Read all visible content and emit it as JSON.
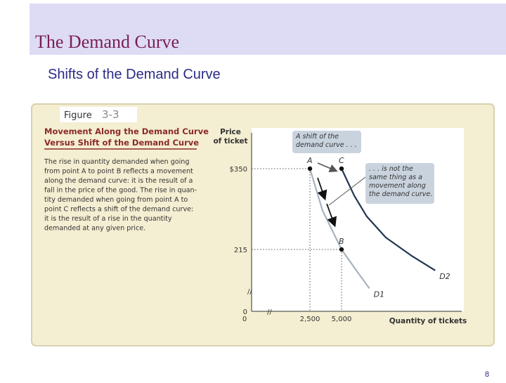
{
  "slide": {
    "title": "The Demand Curve",
    "subtitle": "Shifts of the Demand Curve",
    "page_number": "8"
  },
  "figure": {
    "tab": {
      "word": "Figure",
      "number": "3-3"
    },
    "heading": [
      "Movement Along the Demand Curve",
      "Versus Shift of the Demand Curve"
    ],
    "caption": [
      "The rise in quantity demanded when going",
      "from point A to point B reflects a movement",
      "along the demand curve: it is the result of a",
      "fall in the price of the good. The rise in quan-",
      "tity demanded when going from point A to",
      "point C reflects a shift of the demand curve:",
      "it is the result of a rise in the quantity",
      "demanded at any given price."
    ]
  },
  "chart_data": {
    "type": "line",
    "y_label": [
      "Price",
      "of ticket"
    ],
    "x_label": "Quantity of tickets",
    "xlim": [
      0,
      14500
    ],
    "ylim": [
      0,
      410
    ],
    "xticks": [
      0,
      {
        "value": 2500,
        "label": "2,500"
      },
      {
        "value": 5000,
        "label": "5,000"
      }
    ],
    "yticks": [
      0,
      215,
      {
        "value": 350,
        "label": "$350"
      }
    ],
    "series": [
      {
        "name": "D1",
        "color": "#a9b3bf",
        "x": [
          2500,
          3500,
          5000,
          6000,
          7200
        ],
        "values": [
          350,
          280,
          215,
          185,
          150
        ]
      },
      {
        "name": "D2",
        "color": "#1f3550",
        "x": [
          5000,
          6000,
          7000,
          8500,
          10500,
          12400
        ],
        "values": [
          350,
          305,
          270,
          235,
          205,
          180
        ]
      }
    ],
    "points": [
      {
        "label": "A",
        "x": 2500,
        "y": 350
      },
      {
        "label": "C",
        "x": 5000,
        "y": 350
      },
      {
        "label": "B",
        "x": 5000,
        "y": 215
      }
    ],
    "annotations": [
      [
        "A shift of the",
        "demand curve . . ."
      ],
      [
        ". . . is not the",
        "same thing as a",
        "movement along",
        "the demand curve."
      ]
    ]
  }
}
